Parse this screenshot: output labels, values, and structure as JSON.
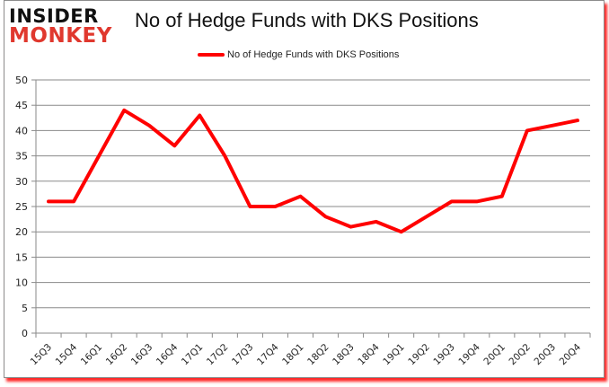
{
  "logo": {
    "line1": "INSIDER",
    "line2": "MONKEY"
  },
  "header": {
    "title": "No of Hedge Funds with DKS Positions"
  },
  "legend": {
    "label": "No of Hedge Funds with DKS Positions",
    "color": "#ff0000"
  },
  "chart_data": {
    "type": "line",
    "title": "No of Hedge Funds with DKS Positions",
    "xlabel": "",
    "ylabel": "",
    "ylim": [
      0,
      50
    ],
    "yticks": [
      0,
      5,
      10,
      15,
      20,
      25,
      30,
      35,
      40,
      45,
      50
    ],
    "grid": true,
    "legend_position": "top",
    "categories": [
      "15Q3",
      "15Q4",
      "16Q1",
      "16Q2",
      "16Q3",
      "16Q4",
      "17Q1",
      "17Q2",
      "17Q3",
      "17Q4",
      "18Q1",
      "18Q2",
      "18Q3",
      "18Q4",
      "19Q1",
      "19Q2",
      "19Q3",
      "19Q4",
      "20Q1",
      "20Q2",
      "20Q3",
      "20Q4"
    ],
    "series": [
      {
        "name": "No of Hedge Funds with DKS Positions",
        "color": "#ff0000",
        "values": [
          26,
          26,
          35,
          44,
          41,
          37,
          43,
          35,
          25,
          25,
          27,
          23,
          21,
          22,
          20,
          23,
          26,
          26,
          27,
          40,
          41,
          42
        ]
      }
    ]
  }
}
